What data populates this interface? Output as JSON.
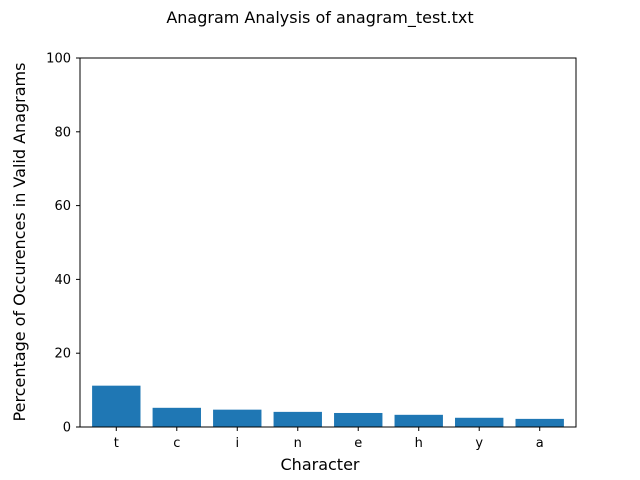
{
  "chart_data": {
    "type": "bar",
    "title": "Anagram Analysis of anagram_test.txt",
    "xlabel": "Character",
    "ylabel": "Percentage of Occurences in Valid Anagrams",
    "categories": [
      "t",
      "c",
      "i",
      "n",
      "e",
      "h",
      "y",
      "a"
    ],
    "values": [
      11.2,
      5.2,
      4.7,
      4.1,
      3.8,
      3.3,
      2.5,
      2.2
    ],
    "ylim": [
      0,
      100
    ],
    "yticks": [
      0,
      20,
      40,
      60,
      80,
      100
    ],
    "grid": false,
    "bar_color": "#1f77b4"
  }
}
